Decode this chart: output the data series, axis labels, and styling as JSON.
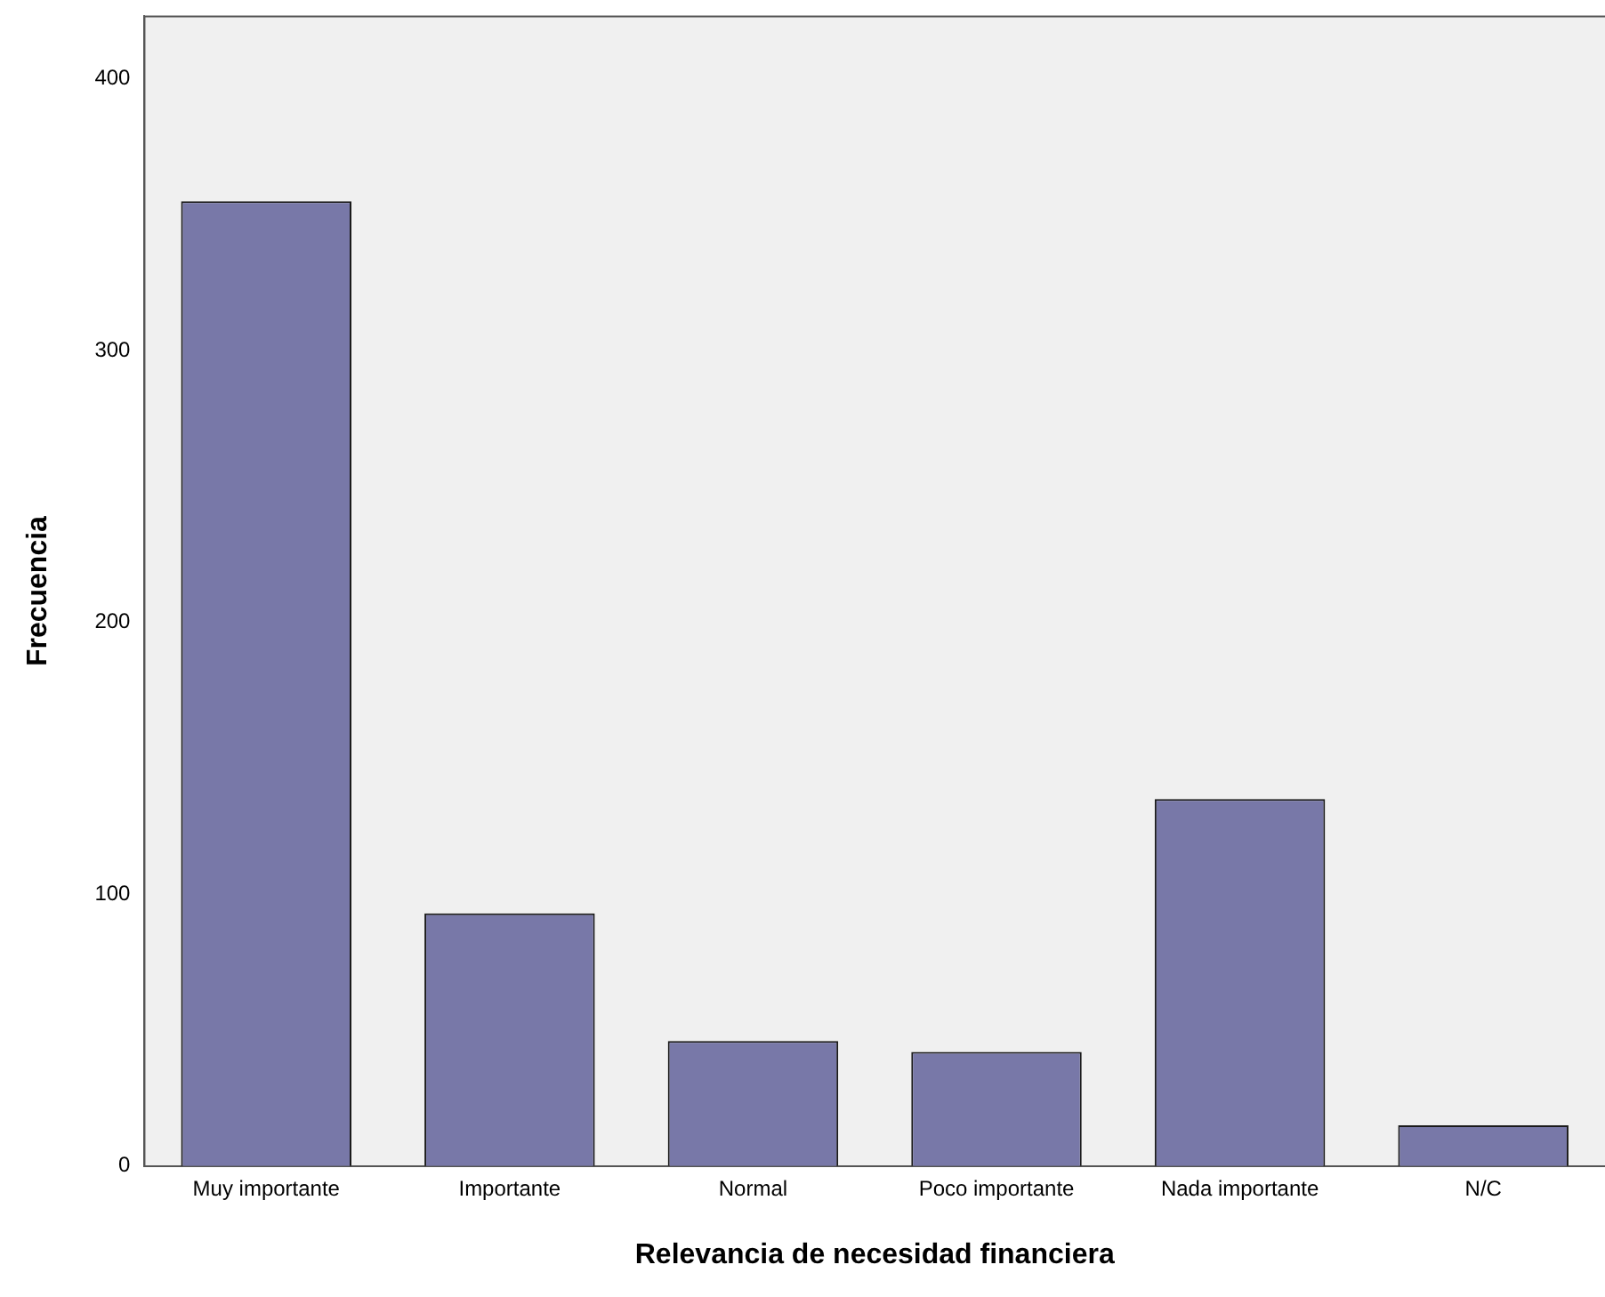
{
  "chart_data": {
    "type": "bar",
    "xlabel": "Relevancia de necesidad financiera",
    "ylabel": "Frecuencia",
    "categories": [
      "Muy importante",
      "Importante",
      "Normal",
      "Poco importante",
      "Nada importante",
      "N/C"
    ],
    "values": [
      355,
      93,
      46,
      42,
      135,
      15
    ],
    "color": "#7878a8",
    "ylim": [
      0,
      423
    ],
    "yticks": [
      0,
      100,
      200,
      300,
      400
    ],
    "grid": false,
    "legend": false
  }
}
